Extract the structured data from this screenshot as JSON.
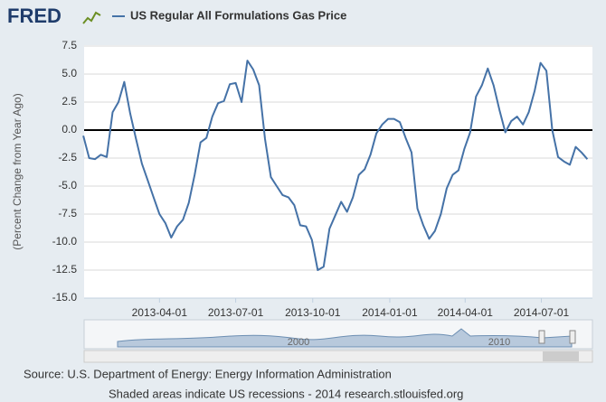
{
  "brand": "FRED",
  "source": "Source: U.S. Department of Energy: Energy Information Administration",
  "note": "Shaded areas indicate US recessions - 2014 research.stlouisfed.org",
  "navigator_labels": [
    "2000",
    "2010"
  ],
  "chart_data": {
    "type": "line",
    "y_label": "(Percent Change from Year Ago)",
    "x": [
      "2012-12-31",
      "2013-01-07",
      "2013-01-14",
      "2013-01-21",
      "2013-01-28",
      "2013-02-04",
      "2013-02-11",
      "2013-02-18",
      "2013-02-25",
      "2013-03-04",
      "2013-03-11",
      "2013-03-18",
      "2013-03-25",
      "2013-04-01",
      "2013-04-08",
      "2013-04-15",
      "2013-04-22",
      "2013-04-29",
      "2013-05-06",
      "2013-05-13",
      "2013-05-20",
      "2013-05-27",
      "2013-06-03",
      "2013-06-10",
      "2013-06-17",
      "2013-06-24",
      "2013-07-01",
      "2013-07-08",
      "2013-07-15",
      "2013-07-22",
      "2013-07-29",
      "2013-08-05",
      "2013-08-12",
      "2013-08-19",
      "2013-08-26",
      "2013-09-02",
      "2013-09-09",
      "2013-09-16",
      "2013-09-23",
      "2013-09-30",
      "2013-10-07",
      "2013-10-14",
      "2013-10-21",
      "2013-10-28",
      "2013-11-04",
      "2013-11-11",
      "2013-11-18",
      "2013-11-25",
      "2013-12-02",
      "2013-12-09",
      "2013-12-16",
      "2013-12-23",
      "2013-12-30",
      "2014-01-06",
      "2014-01-13",
      "2014-01-20",
      "2014-01-27",
      "2014-02-03",
      "2014-02-10",
      "2014-02-17",
      "2014-02-24",
      "2014-03-03",
      "2014-03-10",
      "2014-03-17",
      "2014-03-24",
      "2014-03-31",
      "2014-04-07",
      "2014-04-14",
      "2014-04-21",
      "2014-04-28",
      "2014-05-05",
      "2014-05-12",
      "2014-05-19",
      "2014-05-26",
      "2014-06-02",
      "2014-06-09",
      "2014-06-16",
      "2014-06-23",
      "2014-06-30",
      "2014-07-07",
      "2014-07-14",
      "2014-07-21",
      "2014-07-28",
      "2014-08-04",
      "2014-08-11",
      "2014-08-18",
      "2014-08-25"
    ],
    "series": [
      {
        "name": "US Regular All Formulations Gas Price",
        "color": "#4572a7",
        "values": [
          -0.5,
          -2.5,
          -2.6,
          -2.2,
          -2.4,
          1.6,
          2.5,
          4.3,
          1.5,
          -0.8,
          -3.0,
          -4.5,
          -6.0,
          -7.5,
          -8.3,
          -9.6,
          -8.6,
          -8.0,
          -6.5,
          -4.0,
          -1.1,
          -0.7,
          1.2,
          2.4,
          2.6,
          4.1,
          4.2,
          2.5,
          6.2,
          5.4,
          4.0,
          -0.8,
          -4.2,
          -5.0,
          -5.8,
          -6.0,
          -6.7,
          -8.5,
          -8.6,
          -9.8,
          -12.5,
          -12.2,
          -8.8,
          -7.6,
          -6.4,
          -7.3,
          -6.0,
          -4.0,
          -3.5,
          -2.2,
          -0.3,
          0.5,
          1.0,
          1.0,
          0.7,
          -0.7,
          -2.0,
          -7.0,
          -8.5,
          -9.7,
          -9.0,
          -7.5,
          -5.2,
          -4.0,
          -3.6,
          -1.7,
          -0.2,
          3.0,
          4.0,
          5.5,
          4.0,
          1.8,
          -0.2,
          0.8,
          1.2,
          0.5,
          1.6,
          3.5,
          6.0,
          5.3,
          0.0,
          -2.4,
          -2.8,
          -3.1,
          -1.5,
          -2.0,
          -2.6
        ]
      }
    ],
    "xlim": [
      "2013-01-01",
      "2014-08-31"
    ],
    "xticks": [
      "2013-04-01",
      "2013-07-01",
      "2013-10-01",
      "2014-01-01",
      "2014-04-01",
      "2014-07-01"
    ],
    "ylim": [
      -15,
      7.5
    ],
    "yticks": [
      7.5,
      {
        "value": 5,
        "label": "5.0"
      },
      2.5,
      {
        "value": 0,
        "label": "0.0"
      },
      -2.5,
      {
        "value": -5,
        "label": "-5.0"
      },
      -7.5,
      {
        "value": -10,
        "label": "-10.0"
      },
      -12.5,
      {
        "value": -15,
        "label": "-15.0"
      }
    ],
    "grid": true
  }
}
